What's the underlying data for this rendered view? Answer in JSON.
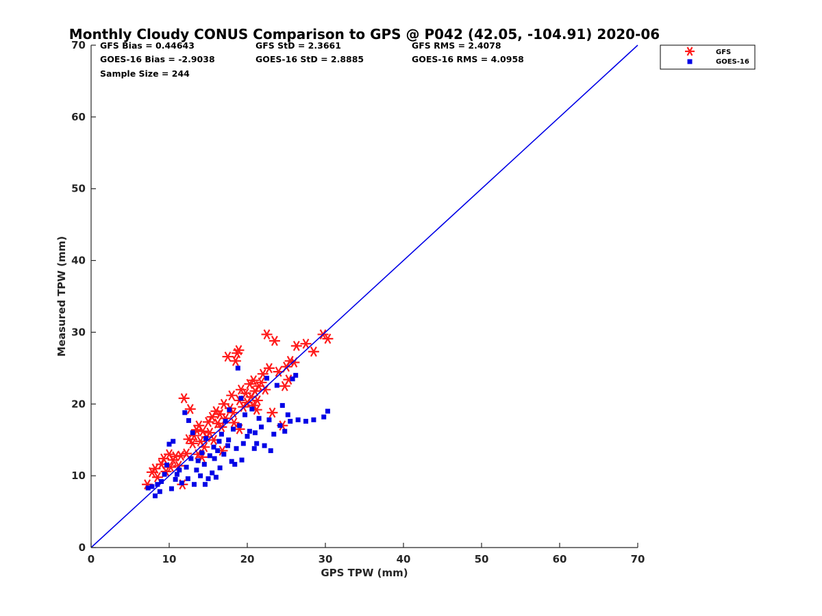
{
  "chart_data": {
    "type": "scatter",
    "title": "Monthly Cloudy CONUS Comparison to GPS @ P042 (42.05, -104.91) 2020-06",
    "xlabel": "GPS TPW (mm)",
    "ylabel": "Measured TPW (mm)",
    "xlim": [
      0,
      70
    ],
    "ylim": [
      0,
      70
    ],
    "xticks": [
      0,
      10,
      20,
      30,
      40,
      50,
      60,
      70
    ],
    "yticks": [
      0,
      10,
      20,
      30,
      40,
      50,
      60,
      70
    ],
    "grid": false,
    "legend_position": "top-right outside",
    "stats": [
      "GFS Bias = 0.44643",
      "GFS StD = 2.3661",
      "GFS RMS = 2.4078",
      "GOES-16 Bias = -2.9038",
      "GOES-16 StD = 2.8885",
      "GOES-16 RMS = 4.0958",
      "Sample Size = 244"
    ],
    "reference_line": {
      "x": [
        0,
        70
      ],
      "y": [
        0,
        70
      ],
      "color": "#0000e6"
    },
    "series": [
      {
        "name": "GFS",
        "marker": "asterisk",
        "color": "#ff1a1a",
        "points": [
          [
            7.2,
            8.8
          ],
          [
            7.8,
            10.5
          ],
          [
            8.2,
            11.0
          ],
          [
            8.5,
            9.8
          ],
          [
            9.0,
            11.6
          ],
          [
            9.3,
            12.4
          ],
          [
            9.6,
            10.6
          ],
          [
            10.0,
            13.0
          ],
          [
            10.2,
            11.2
          ],
          [
            10.5,
            12.2
          ],
          [
            10.8,
            12.7
          ],
          [
            11.2,
            11.4
          ],
          [
            11.5,
            12.8
          ],
          [
            11.7,
            8.8
          ],
          [
            11.9,
            20.8
          ],
          [
            12.2,
            13.1
          ],
          [
            12.5,
            15.1
          ],
          [
            12.7,
            19.3
          ],
          [
            13.0,
            14.5
          ],
          [
            13.2,
            15.6
          ],
          [
            13.5,
            16.4
          ],
          [
            13.8,
            17.0
          ],
          [
            14.0,
            14.8
          ],
          [
            14.3,
            16.2
          ],
          [
            14.5,
            14.0
          ],
          [
            14.8,
            15.4
          ],
          [
            15.0,
            17.5
          ],
          [
            15.2,
            16.0
          ],
          [
            15.5,
            18.2
          ],
          [
            15.7,
            15.0
          ],
          [
            16.0,
            19.0
          ],
          [
            16.2,
            17.3
          ],
          [
            16.5,
            18.6
          ],
          [
            16.7,
            16.8
          ],
          [
            17.0,
            20.0
          ],
          [
            17.2,
            18.0
          ],
          [
            17.5,
            26.6
          ],
          [
            17.8,
            19.4
          ],
          [
            18.0,
            21.2
          ],
          [
            18.2,
            18.8
          ],
          [
            18.5,
            26.0
          ],
          [
            18.7,
            27.1
          ],
          [
            18.9,
            27.5
          ],
          [
            19.0,
            20.5
          ],
          [
            19.2,
            22.0
          ],
          [
            19.5,
            19.6
          ],
          [
            19.8,
            21.5
          ],
          [
            20.0,
            20.2
          ],
          [
            20.3,
            22.8
          ],
          [
            20.5,
            21.0
          ],
          [
            20.8,
            23.3
          ],
          [
            21.0,
            21.8
          ],
          [
            21.3,
            20.5
          ],
          [
            21.5,
            22.5
          ],
          [
            21.8,
            23.0
          ],
          [
            22.0,
            24.2
          ],
          [
            22.3,
            22.0
          ],
          [
            22.5,
            29.7
          ],
          [
            22.8,
            25.0
          ],
          [
            23.2,
            18.8
          ],
          [
            23.5,
            28.8
          ],
          [
            24.0,
            24.5
          ],
          [
            24.5,
            17.0
          ],
          [
            24.8,
            22.5
          ],
          [
            25.0,
            25.2
          ],
          [
            25.3,
            23.4
          ],
          [
            25.5,
            26.0
          ],
          [
            26.0,
            25.8
          ],
          [
            26.3,
            28.1
          ],
          [
            27.5,
            28.4
          ],
          [
            28.5,
            27.3
          ],
          [
            29.7,
            29.7
          ],
          [
            30.3,
            29.1
          ],
          [
            19.0,
            16.5
          ],
          [
            16.8,
            13.5
          ],
          [
            14.2,
            12.6
          ],
          [
            21.2,
            19.2
          ],
          [
            18.3,
            17.4
          ],
          [
            20.7,
            19.8
          ],
          [
            13.7,
            13.0
          ]
        ]
      },
      {
        "name": "GOES-16",
        "marker": "square",
        "color": "#0000e6",
        "points": [
          [
            7.3,
            8.3
          ],
          [
            7.8,
            8.5
          ],
          [
            8.2,
            7.2
          ],
          [
            8.5,
            8.8
          ],
          [
            8.8,
            7.8
          ],
          [
            9.0,
            9.2
          ],
          [
            9.4,
            10.2
          ],
          [
            9.7,
            11.5
          ],
          [
            10.0,
            14.4
          ],
          [
            10.3,
            8.2
          ],
          [
            10.5,
            14.8
          ],
          [
            10.8,
            9.5
          ],
          [
            11.0,
            10.2
          ],
          [
            11.3,
            10.8
          ],
          [
            11.6,
            9.0
          ],
          [
            12.0,
            18.8
          ],
          [
            12.2,
            11.2
          ],
          [
            12.5,
            17.7
          ],
          [
            12.8,
            12.4
          ],
          [
            13.0,
            16.0
          ],
          [
            13.2,
            8.8
          ],
          [
            13.5,
            10.8
          ],
          [
            13.7,
            12.1
          ],
          [
            14.0,
            10.0
          ],
          [
            14.2,
            13.2
          ],
          [
            14.5,
            11.6
          ],
          [
            14.7,
            15.2
          ],
          [
            15.0,
            9.6
          ],
          [
            15.2,
            12.8
          ],
          [
            15.5,
            10.4
          ],
          [
            15.7,
            14.0
          ],
          [
            16.0,
            9.8
          ],
          [
            16.2,
            13.5
          ],
          [
            16.5,
            11.1
          ],
          [
            16.7,
            15.8
          ],
          [
            17.0,
            13.0
          ],
          [
            17.2,
            17.6
          ],
          [
            17.5,
            14.2
          ],
          [
            17.7,
            19.2
          ],
          [
            18.0,
            12.0
          ],
          [
            18.2,
            16.5
          ],
          [
            18.4,
            11.6
          ],
          [
            18.6,
            13.8
          ],
          [
            18.8,
            25.0
          ],
          [
            19.0,
            17.0
          ],
          [
            19.2,
            20.8
          ],
          [
            19.5,
            14.5
          ],
          [
            19.7,
            18.5
          ],
          [
            20.0,
            15.5
          ],
          [
            20.3,
            16.2
          ],
          [
            20.6,
            19.3
          ],
          [
            20.9,
            13.8
          ],
          [
            21.2,
            14.5
          ],
          [
            21.5,
            18.0
          ],
          [
            21.8,
            16.8
          ],
          [
            22.2,
            14.2
          ],
          [
            22.5,
            23.6
          ],
          [
            22.8,
            17.8
          ],
          [
            23.0,
            13.5
          ],
          [
            23.4,
            15.8
          ],
          [
            23.8,
            22.6
          ],
          [
            24.2,
            17.0
          ],
          [
            24.5,
            19.8
          ],
          [
            24.8,
            16.2
          ],
          [
            25.2,
            18.5
          ],
          [
            25.5,
            17.6
          ],
          [
            25.8,
            23.5
          ],
          [
            26.2,
            24.0
          ],
          [
            26.5,
            17.8
          ],
          [
            27.5,
            17.6
          ],
          [
            28.5,
            17.8
          ],
          [
            29.8,
            18.2
          ],
          [
            30.3,
            19.0
          ],
          [
            15.8,
            12.4
          ],
          [
            17.6,
            15.0
          ],
          [
            12.4,
            9.6
          ],
          [
            19.3,
            12.2
          ],
          [
            16.4,
            14.8
          ],
          [
            14.6,
            8.8
          ],
          [
            21.0,
            16.0
          ]
        ]
      }
    ]
  }
}
